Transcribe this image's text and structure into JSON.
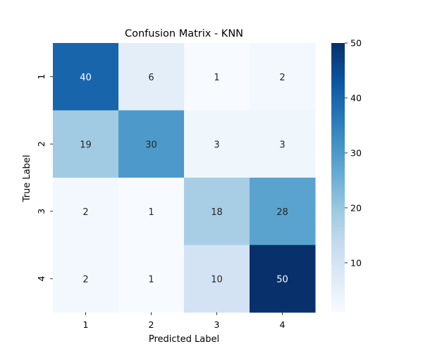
{
  "chart_data": {
    "type": "heatmap",
    "title": "Confusion Matrix - KNN",
    "xlabel": "Predicted Label",
    "ylabel": "True Label",
    "x_categories": [
      "1",
      "2",
      "3",
      "4"
    ],
    "y_categories": [
      "1",
      "2",
      "3",
      "4"
    ],
    "values": [
      [
        40,
        6,
        1,
        2
      ],
      [
        19,
        30,
        3,
        3
      ],
      [
        2,
        1,
        18,
        28
      ],
      [
        2,
        1,
        10,
        50
      ]
    ],
    "colormap": "Blues",
    "colors": {
      "low": "#f7fbff",
      "high": "#08306b"
    },
    "colorbar": {
      "range": [
        1,
        50
      ],
      "ticks": [
        "10",
        "20",
        "30",
        "40",
        "50"
      ]
    },
    "annotations": true,
    "grid": false
  }
}
